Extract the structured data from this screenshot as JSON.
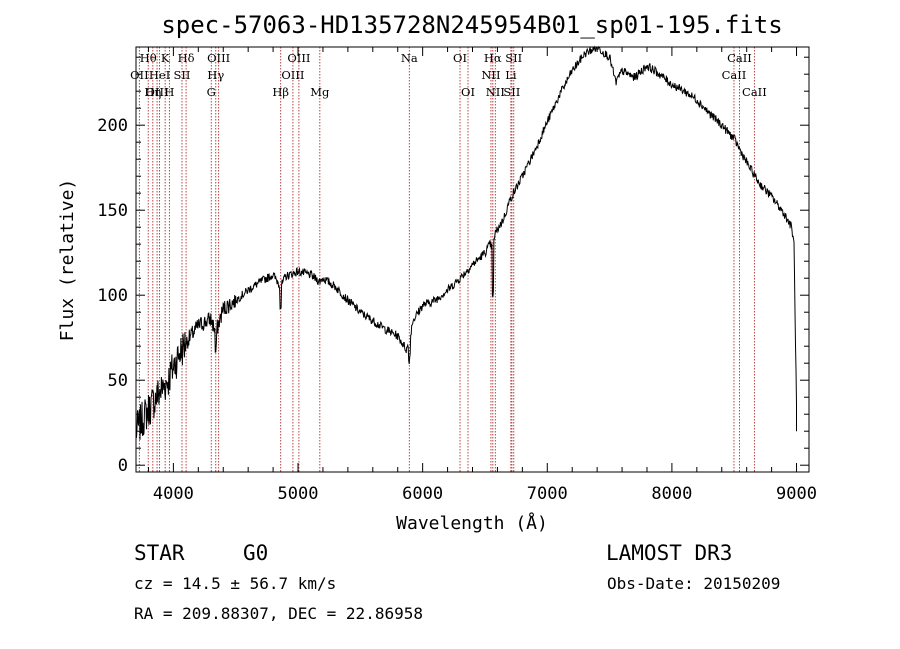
{
  "chart_data": {
    "type": "line",
    "title": "spec-57063-HD135728N245954B01_sp01-195.fits",
    "xlabel": "Wavelength (Å)",
    "ylabel": "Flux (relative)",
    "xlim": [
      3700,
      9100
    ],
    "ylim": [
      -4,
      246
    ],
    "xticks": [
      4000,
      5000,
      6000,
      7000,
      8000,
      9000
    ],
    "xtick_labels": [
      "4000",
      "5000",
      "6000",
      "7000",
      "8000",
      "9000"
    ],
    "yticks": [
      0,
      50,
      100,
      150,
      200
    ],
    "ytick_labels": [
      "0",
      "50",
      "100",
      "150",
      "200"
    ],
    "spectrum_anchors": {
      "wavelength": [
        3700,
        3760,
        3820,
        3880,
        3940,
        3970,
        4000,
        4050,
        4100,
        4200,
        4300,
        4340,
        4400,
        4500,
        4600,
        4700,
        4800,
        4861,
        4900,
        5000,
        5100,
        5172,
        5200,
        5300,
        5400,
        5500,
        5600,
        5700,
        5800,
        5870,
        5893,
        5920,
        6000,
        6100,
        6200,
        6300,
        6400,
        6500,
        6540,
        6563,
        6580,
        6650,
        6700,
        6800,
        6900,
        7000,
        7100,
        7200,
        7300,
        7400,
        7500,
        7550,
        7600,
        7700,
        7800,
        7900,
        8000,
        8100,
        8200,
        8300,
        8400,
        8500,
        8600,
        8700,
        8800,
        8900,
        8960,
        8980,
        9000
      ],
      "flux": [
        20,
        28,
        35,
        42,
        48,
        52,
        58,
        66,
        72,
        82,
        86,
        78,
        92,
        97,
        103,
        108,
        112,
        105,
        111,
        114,
        112,
        108,
        110,
        105,
        97,
        90,
        85,
        80,
        76,
        68,
        72,
        85,
        94,
        97,
        103,
        110,
        118,
        125,
        130,
        128,
        136,
        145,
        156,
        170,
        185,
        202,
        218,
        232,
        242,
        246,
        240,
        225,
        232,
        228,
        235,
        230,
        224,
        220,
        215,
        207,
        200,
        192,
        178,
        166,
        158,
        148,
        140,
        130,
        35
      ]
    },
    "spectral_lines": [
      {
        "name": "Hθ",
        "wavelength": 3798
      },
      {
        "name": "OII",
        "wavelength": 3727
      },
      {
        "name": "OIII",
        "wavelength": 3869
      },
      {
        "name": "HeI",
        "wavelength": 3889
      },
      {
        "name": "Hη",
        "wavelength": 3835
      },
      {
        "name": "K",
        "wavelength": 3934
      },
      {
        "name": "SII",
        "wavelength": 4069
      },
      {
        "name": "H",
        "wavelength": 3968
      },
      {
        "name": "Hδ",
        "wavelength": 4102
      },
      {
        "name": "OIII",
        "wavelength": 4363
      },
      {
        "name": "Hγ",
        "wavelength": 4340
      },
      {
        "name": "G",
        "wavelength": 4304
      },
      {
        "name": "OIII",
        "wavelength": 5007
      },
      {
        "name": "OIII",
        "wavelength": 4959
      },
      {
        "name": "Hβ",
        "wavelength": 4861
      },
      {
        "name": "Mg",
        "wavelength": 5175
      },
      {
        "name": "Na",
        "wavelength": 5893
      },
      {
        "name": "OI",
        "wavelength": 6300
      },
      {
        "name": "OI",
        "wavelength": 6364
      },
      {
        "name": "Hα",
        "wavelength": 6563
      },
      {
        "name": "NII",
        "wavelength": 6548
      },
      {
        "name": "NII",
        "wavelength": 6583
      },
      {
        "name": "SII",
        "wavelength": 6716
      },
      {
        "name": "Li",
        "wavelength": 6708
      },
      {
        "name": "SII",
        "wavelength": 6731
      },
      {
        "name": "CaII",
        "wavelength": 8542
      },
      {
        "name": "CaII",
        "wavelength": 8498
      },
      {
        "name": "CaII",
        "wavelength": 8662
      }
    ]
  },
  "info": {
    "object_class": "STAR",
    "subclass": "G0",
    "survey": "LAMOST DR3",
    "redshift": "cz = 14.5 ± 56.7 km/s",
    "obs_date": "Obs-Date: 20150209",
    "coords": "RA = 209.88307, DEC =  22.86958"
  },
  "colors": {
    "line_marker": "#b03030",
    "spectrum": "#000000"
  }
}
